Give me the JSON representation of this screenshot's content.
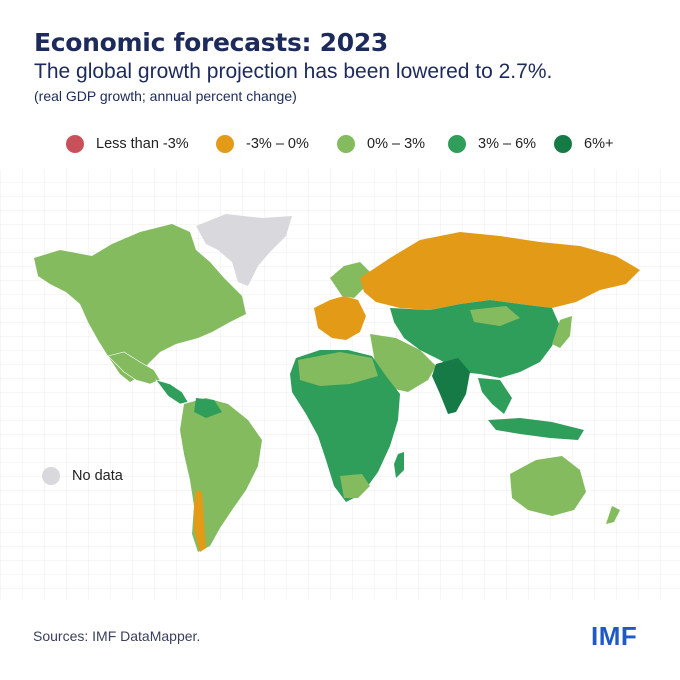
{
  "header": {
    "title": "Economic forecasts: 2023",
    "subtitle": "The global growth projection has been lowered to 2.7%.",
    "note": "(real GDP growth; annual percent change)"
  },
  "legend": [
    {
      "label": "Less than -3%",
      "color": "#c8505a"
    },
    {
      "label": "-3% – 0%",
      "color": "#e39a17"
    },
    {
      "label": "0% – 3%",
      "color": "#84bb5f"
    },
    {
      "label": "3% – 6%",
      "color": "#2f9e5a"
    },
    {
      "label": "6%+",
      "color": "#157a45"
    }
  ],
  "no_data": {
    "label": "No data",
    "color": "#d9d9dd"
  },
  "footer": {
    "source": "Sources: IMF DataMapper.",
    "logo_text": "IMF"
  }
}
